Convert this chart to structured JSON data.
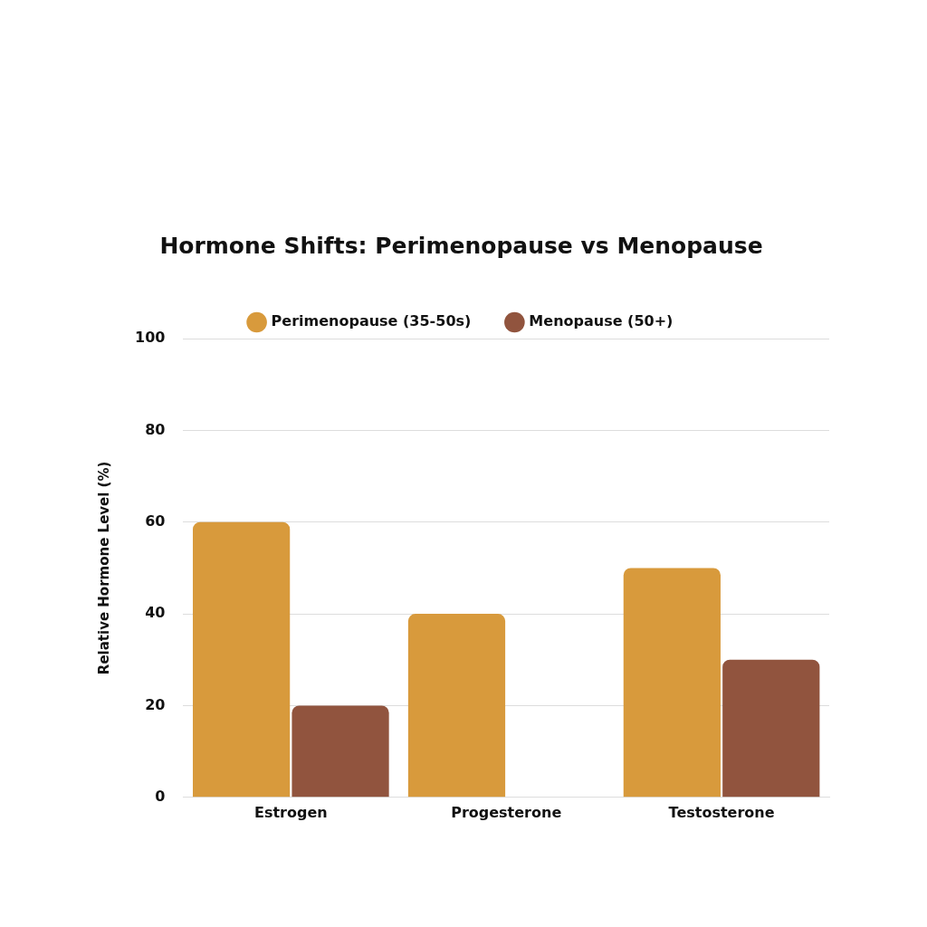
{
  "chart_data": {
    "type": "bar",
    "title": "Hormone Shifts: Perimenopause vs Menopause",
    "ylabel": "Relative Hormone Level (%)",
    "categories": [
      "Estrogen",
      "Progesterone",
      "Testosterone"
    ],
    "series": [
      {
        "name": "Perimenopause (35-50s)",
        "color": "#d89a3c",
        "values": [
          60,
          40,
          50
        ]
      },
      {
        "name": "Menopause (50+)",
        "color": "#91543e",
        "values": [
          20,
          0,
          30
        ]
      }
    ],
    "ylim": [
      0,
      100
    ],
    "yticks": [
      0,
      20,
      40,
      60,
      80,
      100
    ],
    "grid": "y",
    "legend": "top"
  }
}
